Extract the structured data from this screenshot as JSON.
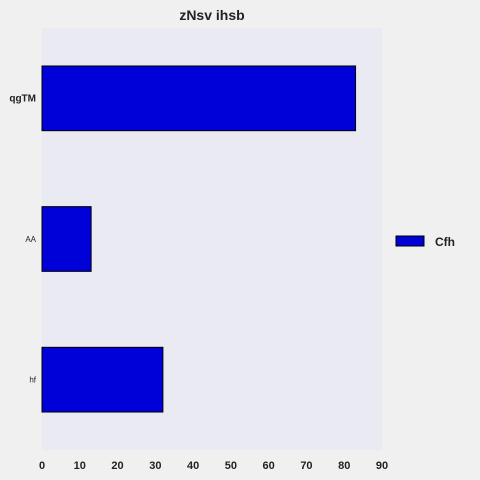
{
  "chart_data": {
    "type": "bar",
    "orientation": "horizontal",
    "title": "zNsv ihsb",
    "categories": [
      "qgTM",
      "AA",
      "hf"
    ],
    "series": [
      {
        "name": "Cfh",
        "values": [
          83,
          13,
          32
        ],
        "color": "#0000d8"
      }
    ],
    "xlim": [
      0,
      90
    ],
    "x_ticks": [
      0,
      10,
      20,
      30,
      40,
      50,
      60,
      70,
      80,
      90
    ],
    "xlabel": "",
    "ylabel": "",
    "grid": false,
    "legend_position": "right",
    "plot_background": "#eaeaf2"
  }
}
